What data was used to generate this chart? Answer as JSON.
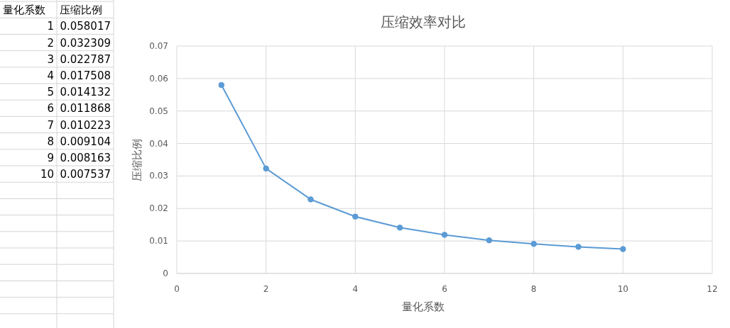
{
  "chart_data": [
    {
      "type": "heatmap",
      "annotations": [
        "量化系数"
      ],
      "categories": [
        "压缩比例"
      ],
      "y_categories": [
        "1",
        "2",
        "3",
        "4",
        "5",
        "6",
        "7",
        "8",
        "9",
        "10"
      ],
      "cells": [
        [
          0.058017
        ],
        [
          0.032309
        ],
        [
          0.022787
        ],
        [
          0.017508
        ],
        [
          0.014132
        ],
        [
          0.011868
        ],
        [
          0.010223
        ],
        [
          0.009104
        ],
        [
          0.008163
        ],
        [
          0.007537
        ]
      ],
      "data_labels": true
    },
    {
      "type": "line",
      "title": "压缩效率对比",
      "xlabel": "量化系数",
      "ylabel": "压缩比例",
      "x": [
        1,
        2,
        3,
        4,
        5,
        6,
        7,
        8,
        9,
        10
      ],
      "series": [
        {
          "color": "#5b9bd5",
          "values": [
            0.058,
            0.0323,
            0.0228,
            0.0175,
            0.0141,
            0.0119,
            0.0102,
            0.0091,
            0.0082,
            0.0075
          ]
        }
      ],
      "xlim": [
        0,
        12
      ],
      "xticks": [
        0,
        2,
        4,
        6,
        8,
        10,
        12
      ],
      "ylim": [
        0,
        0.07
      ],
      "yticks": [
        0,
        0.01,
        0.02,
        0.03,
        0.04,
        0.05,
        0.06,
        0.07
      ],
      "grid": true,
      "marker": "circle",
      "line_style": "solid"
    }
  ]
}
